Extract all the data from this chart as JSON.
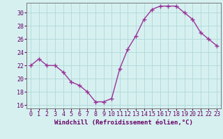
{
  "x": [
    0,
    1,
    2,
    3,
    4,
    5,
    6,
    7,
    8,
    9,
    10,
    11,
    12,
    13,
    14,
    15,
    16,
    17,
    18,
    19,
    20,
    21,
    22,
    23
  ],
  "y": [
    22,
    23,
    22,
    22,
    21,
    19.5,
    19,
    18,
    16.5,
    16.5,
    17,
    21.5,
    24.5,
    26.5,
    29,
    30.5,
    31,
    31,
    31,
    30,
    29,
    27,
    26,
    25
  ],
  "color": "#993399",
  "marker": "+",
  "markersize": 4,
  "linewidth": 1.0,
  "xlabel": "Windchill (Refroidissement éolien,°C)",
  "xlabel_fontsize": 6.5,
  "ylim": [
    15.5,
    31.5
  ],
  "yticks": [
    16,
    18,
    20,
    22,
    24,
    26,
    28,
    30
  ],
  "xticks": [
    0,
    1,
    2,
    3,
    4,
    5,
    6,
    7,
    8,
    9,
    10,
    11,
    12,
    13,
    14,
    15,
    16,
    17,
    18,
    19,
    20,
    21,
    22,
    23
  ],
  "bg_color": "#d6f0f0",
  "grid_color": "#b0d8d8",
  "tick_fontsize": 6,
  "title": ""
}
